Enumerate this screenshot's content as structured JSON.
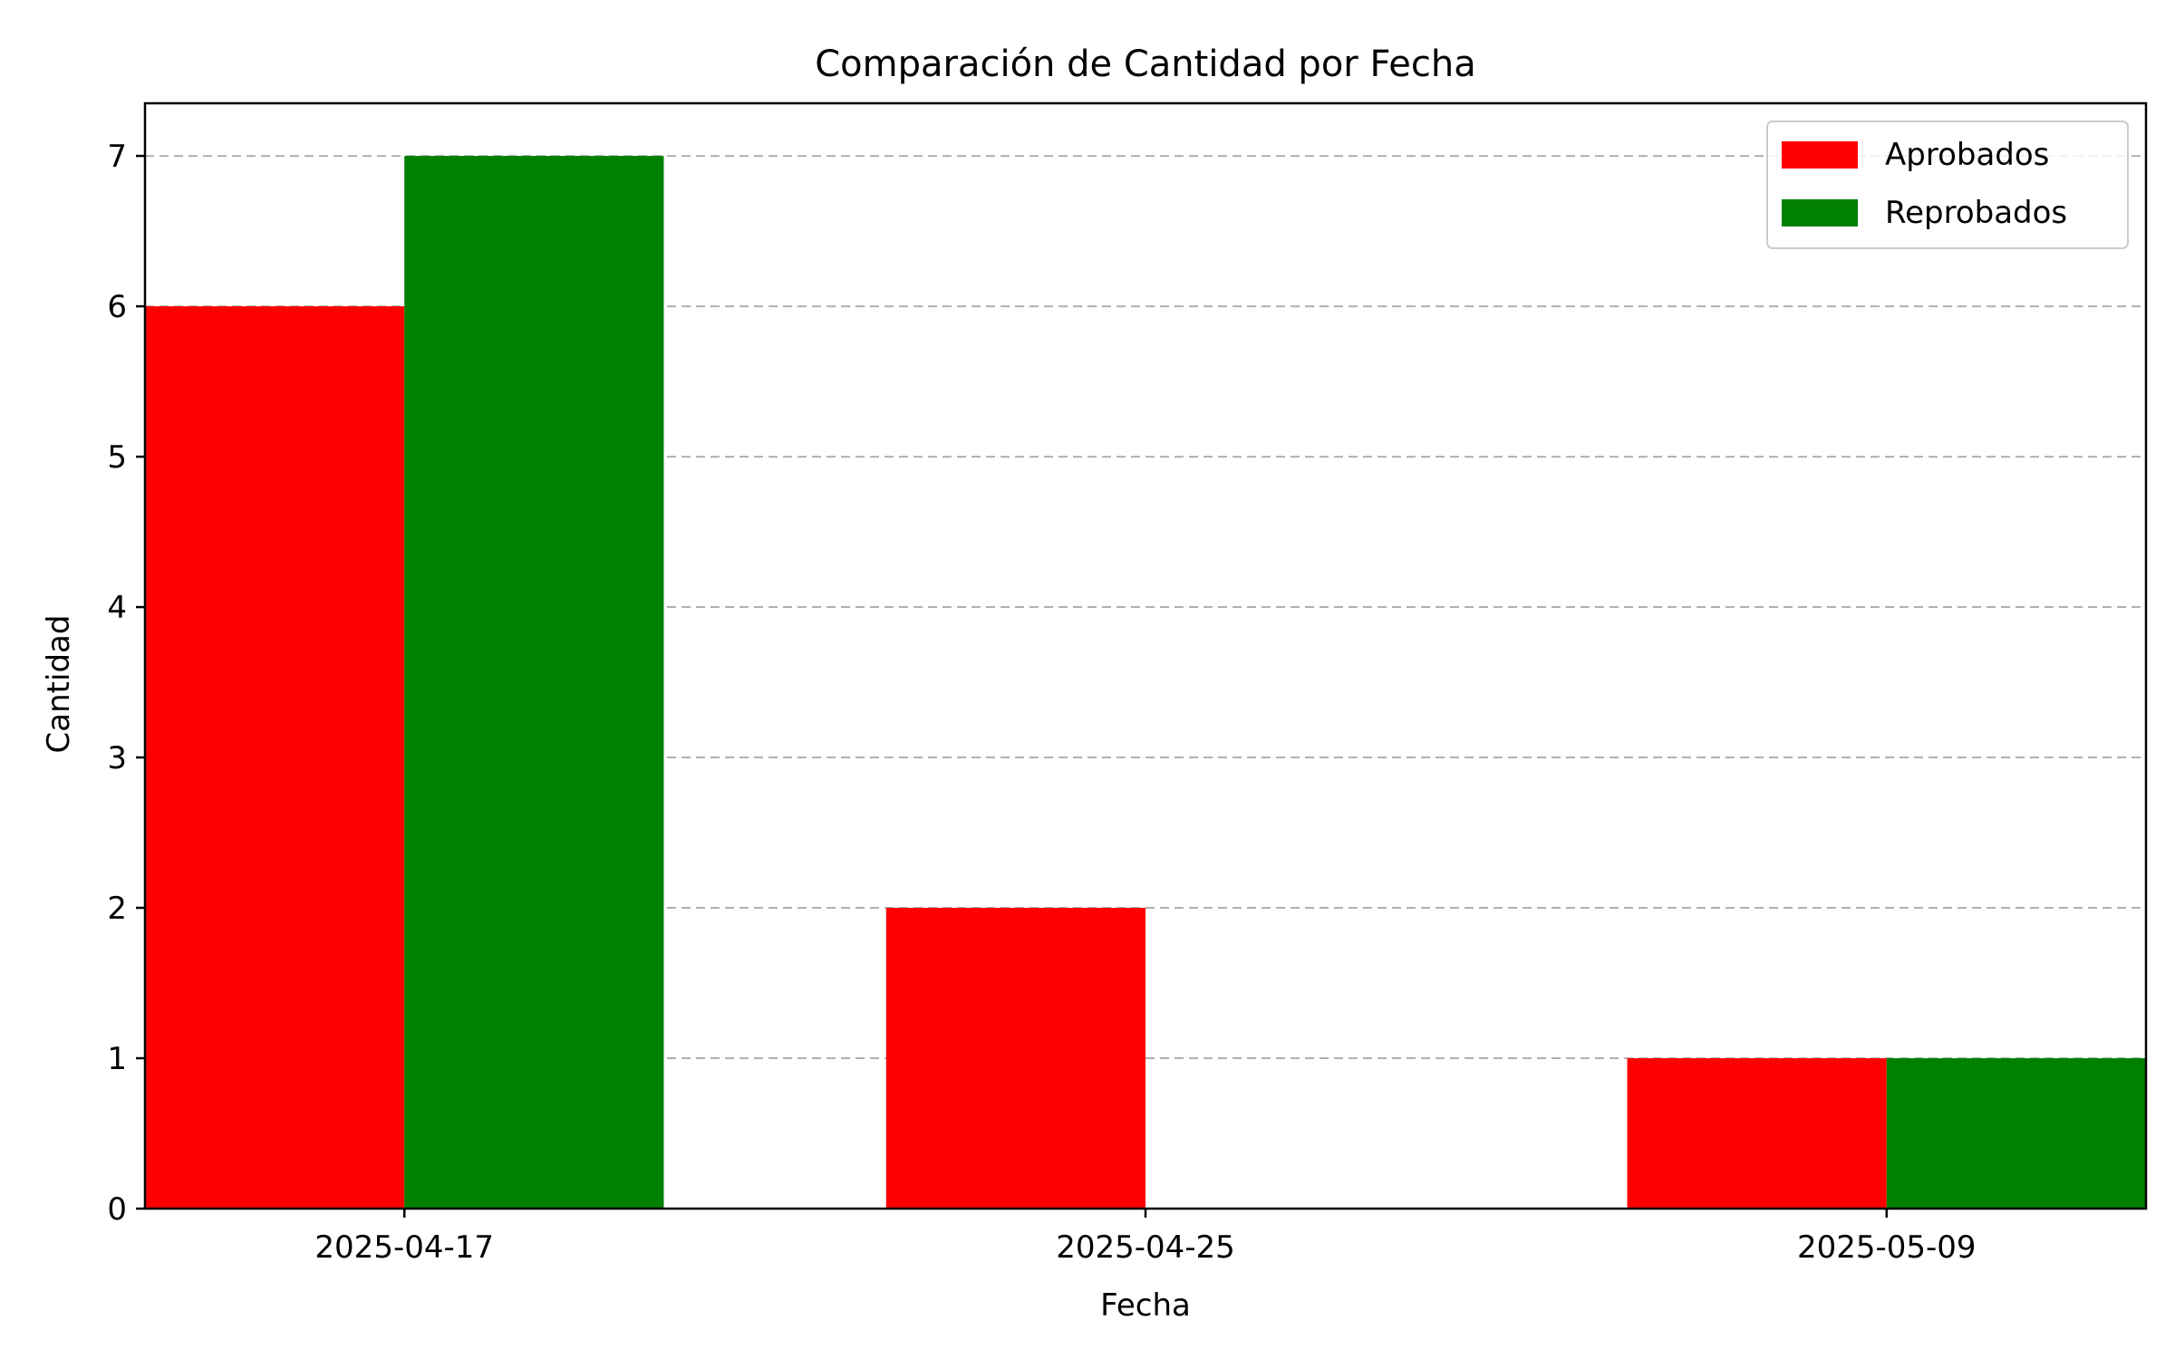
{
  "chart_data": {
    "type": "bar",
    "title": "Comparación de Cantidad por Fecha",
    "xlabel": "Fecha",
    "ylabel": "Cantidad",
    "categories": [
      "2025-04-17",
      "2025-04-25",
      "2025-05-09"
    ],
    "series": [
      {
        "name": "Aprobados",
        "values": [
          6,
          2,
          1
        ],
        "color": "#ff0000"
      },
      {
        "name": "Reprobados",
        "values": [
          7,
          0,
          1
        ],
        "color": "#008000"
      }
    ],
    "ylim": [
      0,
      7.35
    ],
    "yticks": [
      0,
      1,
      2,
      3,
      4,
      5,
      6,
      7
    ],
    "grid": "y-dashed",
    "legend_position": "top-right"
  }
}
